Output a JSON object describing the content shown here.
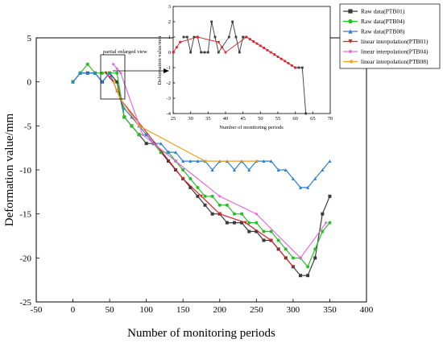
{
  "chart_data": [
    {
      "type": "line",
      "xlabel": "Number of monitoring periods",
      "ylabel": "Deformation value/mm",
      "xlim": [
        -50,
        400
      ],
      "ylim": [
        -25,
        5
      ],
      "xticks": [
        -50,
        0,
        50,
        100,
        150,
        200,
        250,
        300,
        350,
        400
      ],
      "yticks": [
        5,
        0,
        -5,
        -10,
        -15,
        -20,
        -25
      ],
      "grid": false,
      "legend_position": "top-right",
      "annotation": "partial enlarged view",
      "series": [
        {
          "name": "Raw data(PTB01)",
          "color": "#3a3a3a",
          "marker": "square",
          "x": [
            0,
            10,
            20,
            30,
            40,
            50,
            60,
            70,
            80,
            90,
            100,
            110,
            120,
            130,
            140,
            150,
            160,
            170,
            180,
            190,
            200,
            210,
            220,
            230,
            240,
            250,
            260,
            270,
            280,
            290,
            300,
            310,
            320,
            330,
            340,
            350
          ],
          "y": [
            0,
            1,
            1,
            1,
            0,
            1,
            0,
            -4,
            -5,
            -6,
            -7,
            -7,
            -8,
            -9,
            -10,
            -11,
            -12,
            -13,
            -14,
            -15,
            -15,
            -16,
            -16,
            -16,
            -17,
            -17,
            -18,
            -18,
            -19,
            -20,
            -21,
            -22,
            -22,
            -20,
            -15,
            -13
          ]
        },
        {
          "name": "Raw data(PTB04)",
          "color": "#22c022",
          "marker": "circle",
          "x": [
            0,
            10,
            20,
            30,
            40,
            50,
            60,
            70,
            80,
            90,
            100,
            110,
            120,
            130,
            140,
            150,
            160,
            170,
            180,
            190,
            200,
            210,
            220,
            230,
            240,
            250,
            260,
            270,
            280,
            290,
            300,
            310,
            320,
            330,
            340,
            350
          ],
          "y": [
            0,
            1,
            2,
            1,
            1,
            1,
            1,
            -4,
            -5,
            -6,
            -6,
            -7,
            -8,
            -8,
            -9,
            -10,
            -11,
            -12,
            -13,
            -13,
            -14,
            -14,
            -15,
            -15,
            -16,
            -16,
            -17,
            -17,
            -18,
            -19,
            -20,
            -20,
            -21,
            -19,
            -17,
            -16
          ]
        },
        {
          "name": "Raw data(PTB08)",
          "color": "#2a7fd4",
          "marker": "triangle",
          "x": [
            0,
            10,
            20,
            30,
            40,
            50,
            60,
            70,
            80,
            90,
            100,
            110,
            120,
            130,
            140,
            150,
            160,
            170,
            180,
            190,
            200,
            210,
            220,
            230,
            240,
            250,
            260,
            270,
            280,
            290,
            300,
            310,
            320,
            330,
            340,
            350
          ],
          "y": [
            0,
            1,
            1,
            1,
            0,
            1,
            -1,
            -3,
            -4,
            -5,
            -6,
            -7,
            -7,
            -8,
            -8,
            -9,
            -9,
            -9,
            -9,
            -10,
            -9,
            -9,
            -10,
            -9,
            -10,
            -9,
            -9,
            -9,
            -10,
            -10,
            -11,
            -12,
            -12,
            -11,
            -10,
            -9
          ]
        },
        {
          "name": "linear interpolation(PTB01)",
          "color": "#e0202a",
          "marker": "triangle-down",
          "x": [
            45,
            50,
            55,
            60,
            65,
            150,
            175,
            200,
            235,
            270,
            300
          ],
          "y": [
            1,
            0.5,
            0,
            -1,
            -2,
            -11,
            -13,
            -15,
            -16,
            -18,
            -21
          ]
        },
        {
          "name": "linear interpolation(PTB04)",
          "color": "#e86ae0",
          "marker": "diamond",
          "x": [
            55,
            60,
            65,
            95,
            140,
            200,
            250,
            310,
            345
          ],
          "y": [
            2,
            1.5,
            1,
            -6,
            -9,
            -13,
            -15,
            -20,
            -16
          ]
        },
        {
          "name": "linear interpolation(PTB08)",
          "color": "#e8a020",
          "marker": "triangle-left",
          "x": [
            55,
            60,
            65,
            90,
            180,
            250
          ],
          "y": [
            0,
            -1,
            -2,
            -5,
            -9,
            -9
          ]
        }
      ]
    },
    {
      "type": "line",
      "xlabel": "Number of monitoring periods",
      "ylabel": "Deformation value/mm",
      "xlim": [
        25,
        70
      ],
      "ylim": [
        -4,
        3
      ],
      "xticks": [
        25,
        30,
        35,
        40,
        45,
        50,
        55,
        60,
        65,
        70
      ],
      "yticks": [
        3,
        2,
        1,
        0,
        -1,
        -2,
        -3,
        -4
      ],
      "series": [
        {
          "name": "Raw data(PTB01)",
          "color": "#3a3a3a",
          "x": [
            28,
            29,
            30,
            31,
            32,
            33,
            34,
            35,
            36,
            37,
            38,
            41,
            42,
            43,
            44,
            45,
            46,
            60,
            61,
            62,
            63
          ],
          "y": [
            1,
            1,
            0,
            1,
            1,
            0,
            0,
            0,
            2,
            1,
            0,
            1,
            2,
            1,
            0,
            1,
            1,
            -1,
            -1,
            -1,
            -4
          ]
        },
        {
          "name": "linear interpolation(PTB01)",
          "color": "#e0202a",
          "x": [
            25,
            26,
            27,
            32,
            38,
            39,
            40,
            46,
            47,
            48,
            49,
            50,
            51,
            52,
            53,
            54,
            55,
            56,
            57,
            58,
            59,
            60
          ],
          "y": [
            0,
            0.33,
            0.67,
            1,
            0.67,
            0.33,
            0,
            1,
            0.86,
            0.71,
            0.57,
            0.43,
            0.29,
            0.14,
            0,
            -0.14,
            -0.29,
            -0.43,
            -0.57,
            -0.71,
            -0.86,
            -1
          ]
        }
      ]
    }
  ]
}
